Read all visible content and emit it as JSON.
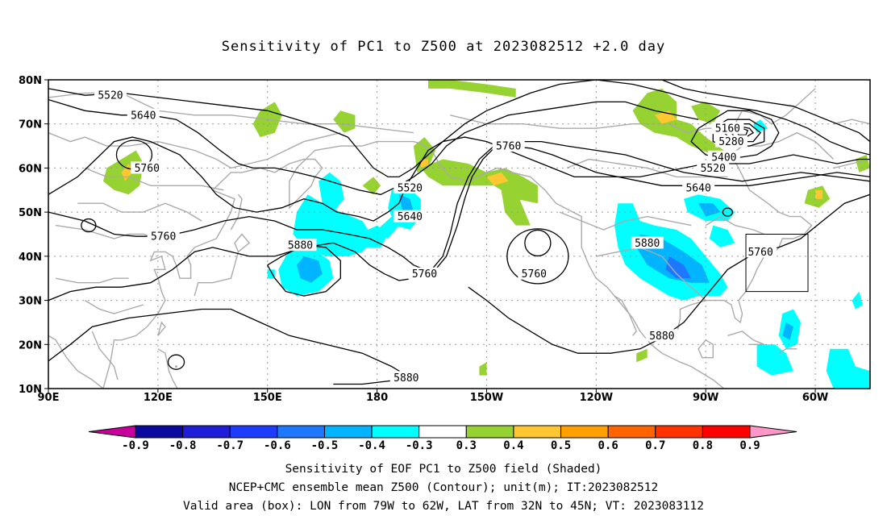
{
  "title": "Sensitivity of PC1 to Z500 at 2023082512 +2.0 day",
  "axes": {
    "lat_labels": [
      "80N",
      "70N",
      "60N",
      "50N",
      "40N",
      "30N",
      "20N",
      "10N"
    ],
    "lon_labels": [
      "90E",
      "120E",
      "150E",
      "180",
      "150W",
      "120W",
      "90W",
      "60W"
    ]
  },
  "contour_labels": [
    {
      "text": "5520",
      "lon": 107,
      "lat": 76.5
    },
    {
      "text": "5640",
      "lon": 116,
      "lat": 72
    },
    {
      "text": "5760",
      "lon": 117,
      "lat": 60
    },
    {
      "text": "5760",
      "lon": 121.5,
      "lat": 44.5
    },
    {
      "text": "5880",
      "lon": 159,
      "lat": 42.5
    },
    {
      "text": "5520",
      "lon": 189,
      "lat": 55.5
    },
    {
      "text": "5640",
      "lon": 189,
      "lat": 49
    },
    {
      "text": "5760",
      "lon": 193,
      "lat": 36
    },
    {
      "text": "5760",
      "lon": 216,
      "lat": 65
    },
    {
      "text": "5760",
      "lon": 223,
      "lat": 36
    },
    {
      "text": "5880",
      "lon": 254,
      "lat": 43
    },
    {
      "text": "5880",
      "lon": 258,
      "lat": 22
    },
    {
      "text": "5880",
      "lon": 188,
      "lat": 12.5
    },
    {
      "text": "5160",
      "lon": 276,
      "lat": 69
    },
    {
      "text": "5280",
      "lon": 277,
      "lat": 66
    },
    {
      "text": "5400",
      "lon": 275,
      "lat": 62.5
    },
    {
      "text": "5520",
      "lon": 272,
      "lat": 60
    },
    {
      "text": "5640",
      "lon": 268,
      "lat": 55.5
    },
    {
      "text": "5760",
      "lon": 285,
      "lat": 41
    }
  ],
  "valid_box": {
    "lon_min": 281,
    "lon_max": 298,
    "lat_min": 32,
    "lat_max": 45
  },
  "colorbar": {
    "labels": [
      "-0.9",
      "-0.8",
      "-0.7",
      "-0.6",
      "-0.5",
      "-0.4",
      "-0.3",
      "0.3",
      "0.4",
      "0.5",
      "0.6",
      "0.7",
      "0.8",
      "0.9"
    ],
    "colors": [
      "#0a0aa0",
      "#1e1ed8",
      "#1e3cff",
      "#1e78ff",
      "#00b4ff",
      "#00ffff",
      "#ffffff",
      "#96d232",
      "#ffc832",
      "#ffa000",
      "#ff6400",
      "#ff3200",
      "#ff0000"
    ],
    "low_end": "#c8009c",
    "high_end": "#ff96c8"
  },
  "footer": {
    "line1": "Sensitivity of EOF PC1 to Z500 field (Shaded)",
    "line2": "NCEP+CMC ensemble mean Z500 (Contour); unit(m); IT:2023082512",
    "line3": "Valid area (box): LON from 79W to 62W, LAT from 32N to 45N; VT: 2023083112"
  }
}
